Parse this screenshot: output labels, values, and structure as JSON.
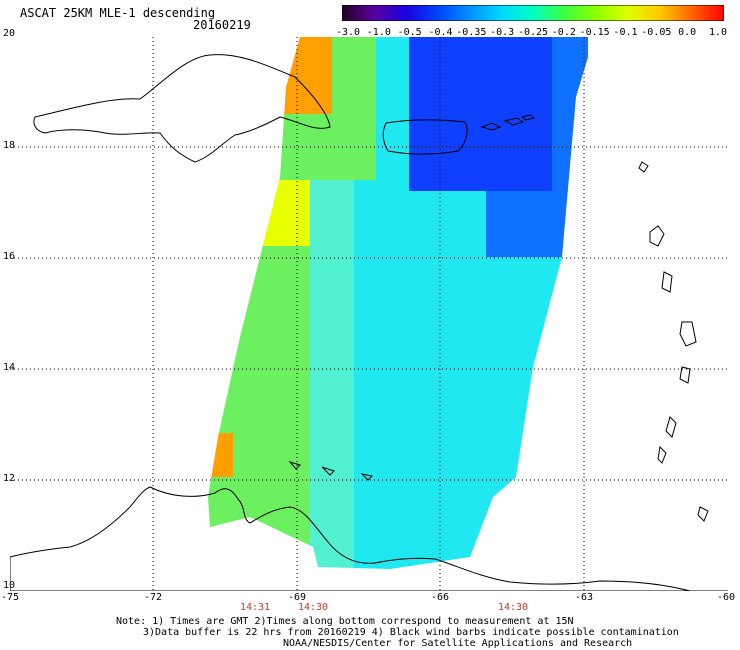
{
  "header": {
    "title": "ASCAT 25KM MLE-1 descending",
    "date": "20160219"
  },
  "colorbar": {
    "labels": [
      "-3.0",
      "-1.0",
      "-0.5",
      "-0.4",
      "-0.35",
      "-0.3",
      "-0.25",
      "-0.2",
      "-0.15",
      "-0.1",
      "-0.05",
      "0.0",
      "1.0"
    ],
    "colors": [
      "#200020",
      "#5a00a0",
      "#1a00e0",
      "#0044ff",
      "#0090ff",
      "#00d8ff",
      "#00ffc0",
      "#40ff40",
      "#90ff00",
      "#e0ff00",
      "#ffc800",
      "#ff6400",
      "#ff0000"
    ]
  },
  "axes": {
    "lat_labels": [
      "20",
      "18",
      "16",
      "14",
      "12",
      "10"
    ],
    "lon_labels": [
      "-75",
      "-72",
      "-69",
      "-66",
      "-63",
      "-60"
    ],
    "time_labels": [
      "14:31",
      "14:30",
      "14:30"
    ]
  },
  "notes": {
    "line1": "Note: 1) Times are GMT 2)Times along bottom correspond to measurement at 15N",
    "line2": "3)Data buffer is 22 hrs from 20160219 4) Black wind barbs indicate possible contamination",
    "line3": "NOAA/NESDIS/Center for Satellite Applications and Research"
  }
}
